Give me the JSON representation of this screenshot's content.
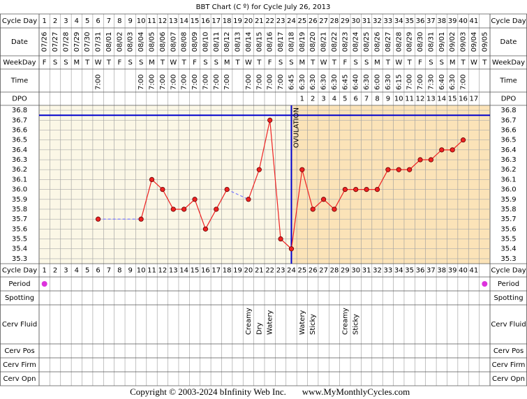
{
  "title": "BBT Chart (C º) for Cycle July 26, 2013",
  "row_labels": {
    "cycle_day": "Cycle Day",
    "date": "Date",
    "weekday": "WeekDay",
    "time": "Time",
    "dpo": "DPO",
    "period": "Period",
    "spotting": "Spotting",
    "cerv_fluid": "Cerv Fluid",
    "cerv_pos": "Cerv Pos",
    "cerv_firm": "Cerv Firm",
    "cerv_opn": "Cerv Opn"
  },
  "chart_data": {
    "type": "line",
    "categories": [
      1,
      2,
      3,
      4,
      5,
      6,
      7,
      8,
      9,
      10,
      11,
      12,
      13,
      14,
      15,
      16,
      17,
      18,
      19,
      20,
      21,
      22,
      23,
      24,
      25,
      26,
      27,
      28,
      29,
      30,
      31,
      32,
      33,
      34,
      35,
      36,
      37,
      38,
      39,
      40,
      41,
      null
    ],
    "dates": [
      "07/26",
      "07/27",
      "07/28",
      "07/29",
      "07/30",
      "07/31",
      "08/01",
      "08/02",
      "08/03",
      "08/04",
      "08/05",
      "08/06",
      "08/07",
      "08/08",
      "08/09",
      "08/10",
      "08/11",
      "08/12",
      "08/13",
      "08/14",
      "08/15",
      "08/16",
      "08/17",
      "08/18",
      "08/19",
      "08/20",
      "08/21",
      "08/22",
      "08/23",
      "08/24",
      "08/25",
      "08/26",
      "08/27",
      "08/28",
      "08/29",
      "08/30",
      "08/31",
      "09/01",
      "09/02",
      "09/03",
      "09/04",
      "09/05"
    ],
    "weekdays": [
      "F",
      "S",
      "S",
      "M",
      "T",
      "W",
      "T",
      "F",
      "S",
      "S",
      "M",
      "T",
      "W",
      "T",
      "F",
      "S",
      "S",
      "M",
      "T",
      "W",
      "T",
      "F",
      "S",
      "S",
      "M",
      "T",
      "W",
      "T",
      "F",
      "S",
      "S",
      "M",
      "T",
      "W",
      "T",
      "F",
      "S",
      "S",
      "M",
      "T",
      "W",
      "T"
    ],
    "times": [
      null,
      null,
      null,
      null,
      null,
      "7:00",
      null,
      null,
      null,
      "7:00",
      "7:00",
      "7:00",
      "7:00",
      "7:00",
      "7:00",
      "7:00",
      "7:00",
      "7:00",
      null,
      "7:00",
      "7:00",
      "7:00",
      "7:00",
      "6:45",
      "6:30",
      "6:30",
      "6:30",
      "6:30",
      "6:45",
      "6:40",
      "6:30",
      "6:00",
      "6:30",
      "6:15",
      "7:00",
      "7:00",
      "7:30",
      "6:40",
      "6:30",
      "7:00",
      null,
      null
    ],
    "dpo": [
      null,
      null,
      null,
      null,
      null,
      null,
      null,
      null,
      null,
      null,
      null,
      null,
      null,
      null,
      null,
      null,
      null,
      null,
      null,
      null,
      null,
      null,
      null,
      null,
      1,
      2,
      3,
      4,
      5,
      6,
      7,
      8,
      9,
      10,
      11,
      12,
      13,
      14,
      15,
      16,
      17,
      null
    ],
    "series": [
      {
        "color": "#ee2222",
        "values": [
          null,
          null,
          null,
          null,
          null,
          35.7,
          null,
          null,
          null,
          35.7,
          36.1,
          36.0,
          35.8,
          35.8,
          35.9,
          35.6,
          35.8,
          36.0,
          null,
          35.9,
          36.2,
          36.7,
          35.5,
          35.4,
          36.2,
          35.8,
          35.9,
          35.8,
          36.0,
          36.0,
          36.0,
          36.0,
          36.2,
          36.2,
          36.2,
          36.3,
          36.3,
          36.4,
          36.4,
          36.5,
          null,
          null
        ]
      }
    ],
    "ylim": [
      35.25,
      36.85
    ],
    "yticks": [
      36.8,
      36.7,
      36.6,
      36.5,
      36.4,
      36.3,
      36.2,
      36.1,
      {
        "value": 36,
        "label": "36.0"
      },
      35.9,
      35.8,
      35.7,
      35.6,
      35.5,
      35.4,
      35.3
    ],
    "grid": true,
    "coverline": 36.75,
    "coverline_color": "#0000cc",
    "ovulation_label": "OVULATION",
    "ovulation_day": 24,
    "period_color": "#dd33dd",
    "period": [
      true,
      false,
      false,
      false,
      false,
      false,
      false,
      false,
      false,
      false,
      false,
      false,
      false,
      false,
      false,
      false,
      false,
      false,
      false,
      false,
      false,
      false,
      false,
      false,
      false,
      false,
      false,
      false,
      false,
      false,
      false,
      false,
      false,
      false,
      false,
      false,
      false,
      false,
      false,
      false,
      false,
      true
    ],
    "cerv_fluid": [
      null,
      null,
      null,
      null,
      null,
      null,
      null,
      null,
      null,
      null,
      null,
      null,
      null,
      null,
      null,
      null,
      null,
      null,
      null,
      "Creamy",
      "Dry",
      "Watery",
      null,
      null,
      "Watery",
      "Sticky",
      null,
      null,
      "Creamy",
      "Sticky",
      null,
      null,
      null,
      null,
      null,
      null,
      null,
      null,
      null,
      null,
      null,
      null
    ]
  },
  "copyright": "Copyright © 2003-2024 bInfinity Web Inc.",
  "website": "www.MyMonthlyCycles.com"
}
